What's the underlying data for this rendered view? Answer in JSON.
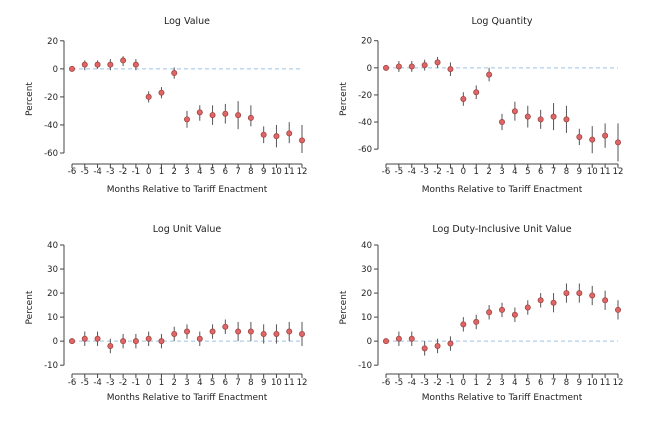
{
  "chart_data": [
    {
      "type": "scatter",
      "title": "Log Value",
      "xlabel": "Months Relative to Tariff Enactment",
      "ylabel": "Percent",
      "ylim": [
        -65,
        22
      ],
      "yticks": [
        20,
        0,
        -20,
        -40,
        -60
      ],
      "x": [
        -6,
        -5,
        -4,
        -3,
        -2,
        -1,
        0,
        1,
        2,
        3,
        4,
        5,
        6,
        7,
        8,
        9,
        10,
        11,
        12
      ],
      "x_tick_labels": [
        "-6",
        "-5",
        "-4",
        "-3",
        "-2",
        "-1",
        "0",
        "1",
        "2",
        "3",
        "4",
        "5",
        "6",
        "7",
        "8",
        "9",
        "10",
        "11",
        "12"
      ],
      "y": [
        0,
        3,
        3,
        3,
        6,
        3,
        -20,
        -17,
        -3,
        -36,
        -31,
        -33,
        -32,
        -33,
        -35,
        -47,
        -48,
        -46,
        -51
      ],
      "ci_low": [
        -1,
        -1,
        0,
        -1,
        2,
        -1,
        -24,
        -21,
        -7,
        -42,
        -37,
        -40,
        -39,
        -43,
        -41,
        -53,
        -56,
        -53,
        -60
      ],
      "ci_high": [
        1,
        6,
        6,
        7,
        9,
        7,
        -16,
        -13,
        1,
        -30,
        -26,
        -26,
        -25,
        -23,
        -26,
        -41,
        -40,
        -38,
        -40
      ],
      "reference_line": 0
    },
    {
      "type": "scatter",
      "title": "Log Quantity",
      "xlabel": "Months Relative to Tariff Enactment",
      "ylabel": "Percent",
      "ylim": [
        -68,
        22
      ],
      "yticks": [
        20,
        0,
        -20,
        -40,
        -60
      ],
      "x": [
        -6,
        -5,
        -4,
        -3,
        -2,
        -1,
        0,
        1,
        2,
        3,
        4,
        5,
        6,
        7,
        8,
        9,
        10,
        11,
        12
      ],
      "x_tick_labels": [
        "-6",
        "-5",
        "-4",
        "-3",
        "-2",
        "-1",
        "0",
        "1",
        "2",
        "3",
        "4",
        "5",
        "6",
        "7",
        "8",
        "9",
        "10",
        "11",
        "12"
      ],
      "y": [
        0,
        1,
        1,
        2,
        4,
        -1,
        -23,
        -18,
        -5,
        -40,
        -32,
        -36,
        -38,
        -36,
        -38,
        -51,
        -53,
        -50,
        -55
      ],
      "ci_low": [
        -1,
        -3,
        -3,
        -2,
        0,
        -6,
        -28,
        -23,
        -10,
        -46,
        -39,
        -44,
        -45,
        -46,
        -48,
        -57,
        -63,
        -59,
        -69
      ],
      "ci_high": [
        1,
        5,
        5,
        6,
        8,
        4,
        -18,
        -13,
        0,
        -34,
        -25,
        -28,
        -31,
        -26,
        -28,
        -45,
        -43,
        -41,
        -41
      ],
      "reference_line": 0
    },
    {
      "type": "scatter",
      "title": "Log Unit Value",
      "xlabel": "Months Relative to Tariff Enactment",
      "ylabel": "Percent",
      "ylim": [
        -12,
        40
      ],
      "yticks": [
        40,
        30,
        20,
        10,
        0,
        -10
      ],
      "x": [
        -6,
        -5,
        -4,
        -3,
        -2,
        -1,
        0,
        1,
        2,
        3,
        4,
        5,
        6,
        7,
        8,
        9,
        10,
        11,
        12
      ],
      "x_tick_labels": [
        "-6",
        "-5",
        "-4",
        "-3",
        "-2",
        "-1",
        "0",
        "1",
        "2",
        "3",
        "4",
        "5",
        "6",
        "7",
        "8",
        "9",
        "10",
        "11",
        "12"
      ],
      "y": [
        0,
        1,
        1,
        -2,
        0,
        0,
        1,
        0,
        3,
        4,
        1,
        4,
        6,
        4,
        4,
        3,
        3,
        4,
        3
      ],
      "ci_low": [
        -1,
        -2,
        -2,
        -5,
        -3,
        -3,
        -2,
        -3,
        0,
        1,
        -2,
        1,
        3,
        0,
        0,
        -1,
        -1,
        0,
        -2
      ],
      "ci_high": [
        1,
        4,
        4,
        1,
        3,
        3,
        4,
        3,
        6,
        7,
        4,
        7,
        9,
        8,
        8,
        7,
        7,
        8,
        8
      ],
      "reference_line": 0
    },
    {
      "type": "scatter",
      "title": "Log Duty-Inclusive Unit Value",
      "xlabel": "Months Relative to Tariff Enactment",
      "ylabel": "Percent",
      "ylim": [
        -12,
        40
      ],
      "yticks": [
        40,
        30,
        20,
        10,
        0,
        -10
      ],
      "x": [
        -6,
        -5,
        -4,
        -3,
        -2,
        -1,
        0,
        1,
        2,
        3,
        4,
        5,
        6,
        7,
        8,
        9,
        10,
        11,
        12
      ],
      "x_tick_labels": [
        "-6",
        "-5",
        "-4",
        "-3",
        "-2",
        "-1",
        "0",
        "1",
        "2",
        "3",
        "4",
        "5",
        "6",
        "7",
        "8",
        "9",
        "10",
        "11",
        "12"
      ],
      "y": [
        0,
        1,
        1,
        -3,
        -2,
        -1,
        7,
        8,
        12,
        13,
        11,
        14,
        17,
        16,
        20,
        20,
        19,
        17,
        13
      ],
      "ci_low": [
        -1,
        -2,
        -2,
        -6,
        -5,
        -4,
        4,
        5,
        9,
        10,
        8,
        11,
        14,
        12,
        16,
        16,
        15,
        13,
        9
      ],
      "ci_high": [
        1,
        4,
        4,
        0,
        1,
        2,
        10,
        11,
        15,
        16,
        14,
        17,
        20,
        20,
        24,
        24,
        23,
        21,
        17
      ],
      "reference_line": 0
    }
  ]
}
